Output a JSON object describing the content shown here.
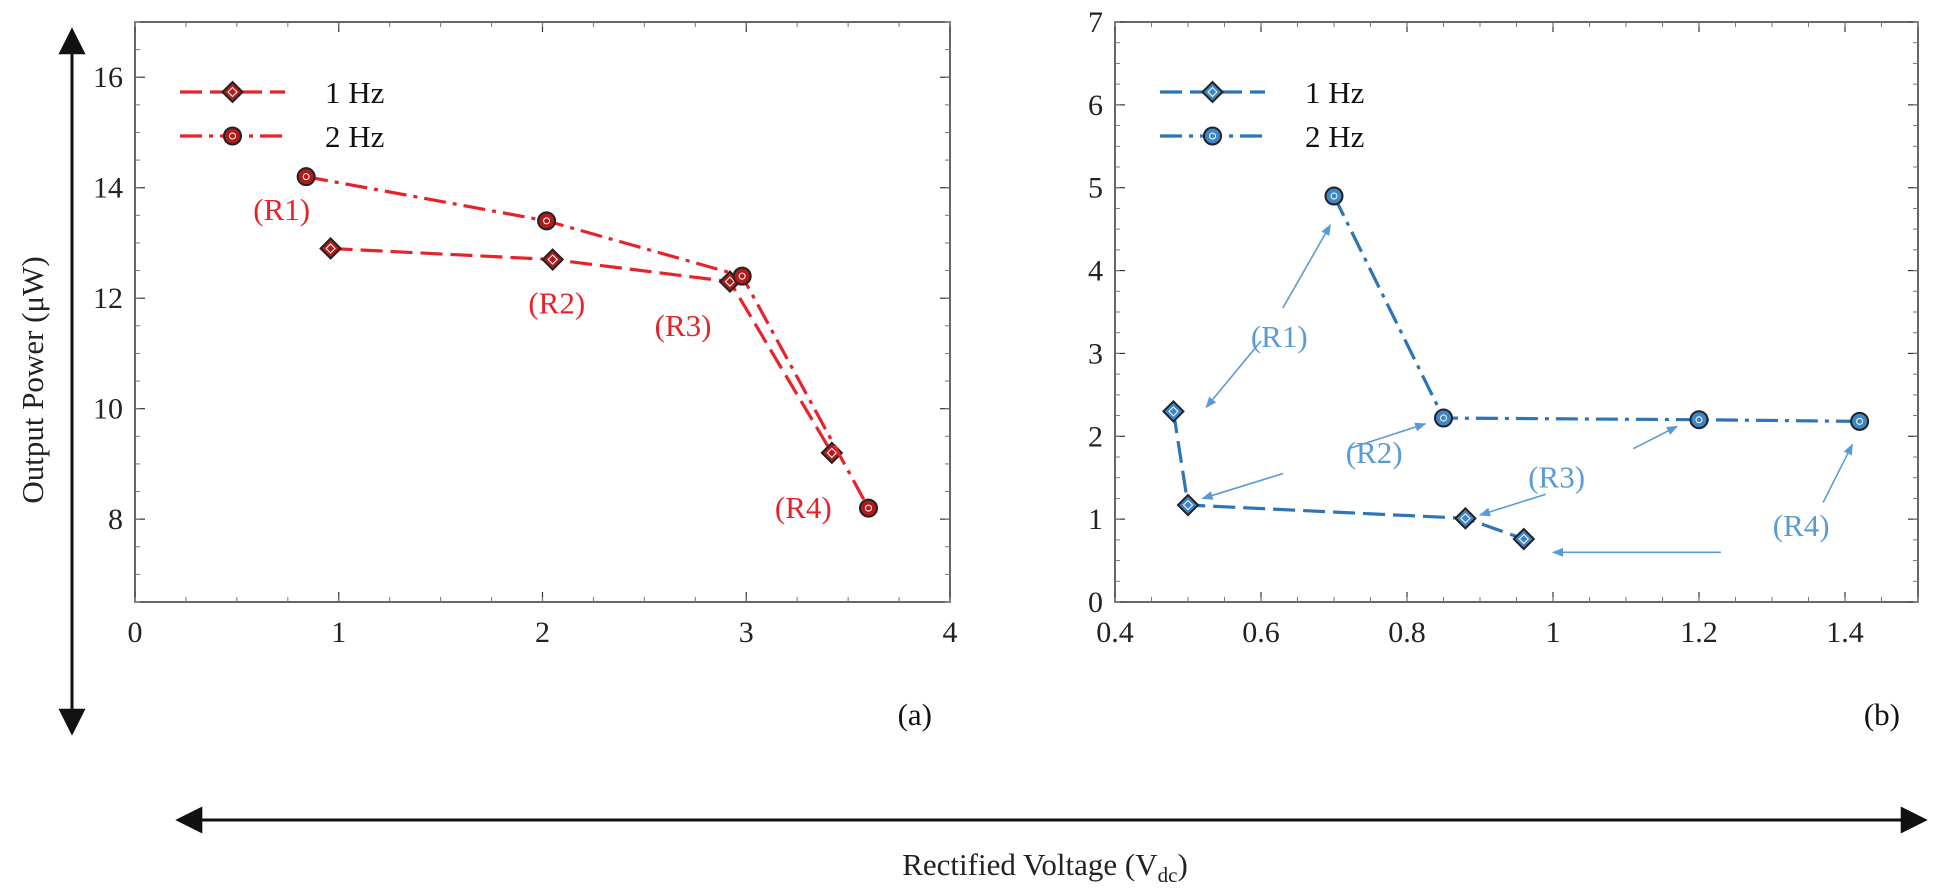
{
  "figure": {
    "x_axis_title": "Rectified Voltage (V",
    "x_axis_title_sub": "dc",
    "x_axis_title_end": ")",
    "y_axis_title": "Output Power (μW)"
  },
  "colors": {
    "red": "#e8222a",
    "red_marker": "#b01c1c",
    "blue": "#2e75b6",
    "blue_marker": "#3f86c6",
    "blue_text": "#5b9bd5",
    "axis": "#333333",
    "tick": "#999999"
  },
  "chart_data": [
    {
      "type": "line",
      "panel_label": "(a)",
      "xlim": [
        0,
        4
      ],
      "ylim": [
        6.5,
        17
      ],
      "xticks": [
        0,
        1,
        2,
        3,
        4
      ],
      "yticks": [
        8,
        10,
        12,
        14,
        16
      ],
      "legend_position": "top-left",
      "grid": false,
      "series": [
        {
          "name": "1 Hz",
          "marker": "diamond",
          "dash": "dashed",
          "x": [
            0.96,
            2.05,
            2.92,
            3.42
          ],
          "y": [
            12.9,
            12.7,
            12.3,
            9.2
          ]
        },
        {
          "name": "2 Hz",
          "marker": "circle",
          "dash": "dash-dot",
          "x": [
            0.84,
            2.02,
            2.98,
            3.6
          ],
          "y": [
            14.2,
            13.4,
            12.4,
            8.2
          ]
        }
      ],
      "annotations": [
        {
          "text": "(R1)",
          "x": 0.72,
          "y": 13.6
        },
        {
          "text": "(R2)",
          "x": 2.07,
          "y": 11.9
        },
        {
          "text": "(R3)",
          "x": 2.69,
          "y": 11.5
        },
        {
          "text": "(R4)",
          "x": 3.28,
          "y": 8.2
        }
      ]
    },
    {
      "type": "line",
      "panel_label": "(b)",
      "xlim": [
        0.4,
        1.5
      ],
      "ylim": [
        0,
        7
      ],
      "xticks": [
        0.4,
        0.6,
        0.8,
        1,
        1.2,
        1.4
      ],
      "xtick_labels": [
        "0.4",
        "0.6",
        "0.8",
        "1",
        "1.2",
        "1.4"
      ],
      "yticks": [
        0,
        1,
        2,
        3,
        4,
        5,
        6,
        7
      ],
      "legend_position": "top-left",
      "grid": false,
      "series": [
        {
          "name": "1 Hz",
          "marker": "diamond",
          "dash": "dashed",
          "x": [
            0.48,
            0.5,
            0.88,
            0.96
          ],
          "y": [
            2.3,
            1.17,
            1.01,
            0.76
          ]
        },
        {
          "name": "2 Hz",
          "marker": "circle",
          "dash": "dash-dot",
          "x": [
            0.7,
            0.85,
            1.2,
            1.42
          ],
          "y": [
            4.9,
            2.22,
            2.2,
            2.18
          ]
        }
      ],
      "annotations": [
        {
          "text": "(R1)",
          "x": 0.625,
          "y": 3.2
        },
        {
          "text": "(R2)",
          "x": 0.755,
          "y": 1.8
        },
        {
          "text": "(R3)",
          "x": 1.005,
          "y": 1.5
        },
        {
          "text": "(R4)",
          "x": 1.34,
          "y": 0.92
        }
      ],
      "arrows": [
        {
          "from": [
            0.63,
            3.55
          ],
          "to": [
            0.695,
            4.55
          ]
        },
        {
          "from": [
            0.6,
            3.15
          ],
          "to": [
            0.525,
            2.35
          ]
        },
        {
          "from": [
            0.63,
            1.55
          ],
          "to": [
            0.52,
            1.25
          ]
        },
        {
          "from": [
            0.72,
            1.85
          ],
          "to": [
            0.825,
            2.15
          ]
        },
        {
          "from": [
            0.99,
            1.3
          ],
          "to": [
            0.9,
            1.05
          ]
        },
        {
          "from": [
            1.11,
            1.85
          ],
          "to": [
            1.17,
            2.12
          ]
        },
        {
          "from": [
            1.37,
            1.2
          ],
          "to": [
            1.41,
            1.9
          ]
        },
        {
          "from": [
            1.23,
            0.6
          ],
          "to": [
            1.0,
            0.6
          ]
        }
      ]
    }
  ]
}
